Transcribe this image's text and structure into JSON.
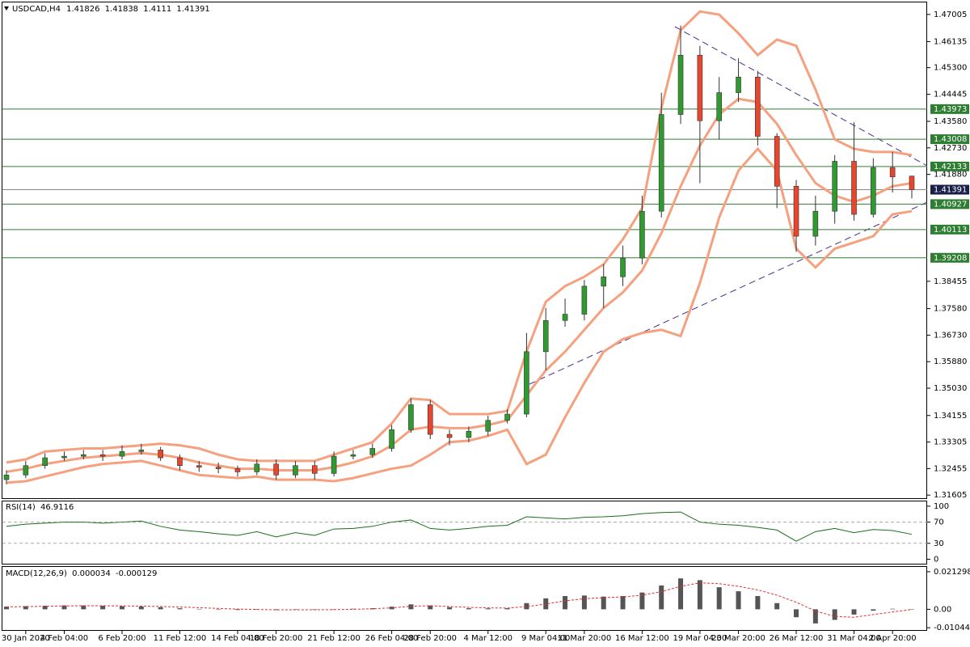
{
  "chart_data": {
    "type": "candlestick",
    "title": "USDCAD,H4",
    "categories": [
      null,
      "30 Jan 2020",
      null,
      "4 Feb 04:00",
      null,
      null,
      "6 Feb 20:00",
      null,
      null,
      "11 Feb 12:00",
      null,
      null,
      "14 Feb 04:00",
      null,
      "18 Feb 20:00",
      null,
      null,
      "21 Feb 12:00",
      null,
      null,
      "26 Feb 04:00",
      null,
      "28 Feb 20:00",
      null,
      null,
      "4 Mar 12:00",
      null,
      null,
      "9 Mar 04:00",
      null,
      "11 Mar 20:00",
      null,
      null,
      "16 Mar 12:00",
      null,
      null,
      "19 Mar 04:00",
      null,
      "23 Mar 20:00",
      null,
      null,
      "26 Mar 12:00",
      null,
      null,
      "31 Mar 04:00",
      null,
      "2 Apr 20:00",
      null
    ],
    "open": [
      1.321,
      1.3225,
      1.3255,
      1.328,
      1.3285,
      1.329,
      1.3285,
      1.33,
      1.3305,
      1.328,
      1.3255,
      1.325,
      1.3245,
      1.3235,
      1.326,
      1.3225,
      1.3255,
      1.323,
      1.3285,
      1.329,
      1.331,
      1.337,
      1.345,
      1.3355,
      1.3345,
      1.3365,
      1.34,
      1.342,
      1.362,
      1.372,
      1.374,
      1.383,
      1.386,
      1.392,
      1.407,
      1.438,
      1.457,
      1.436,
      1.445,
      1.45,
      1.431,
      1.415,
      1.399,
      1.407,
      1.423,
      1.406,
      1.421,
      1.41826
    ],
    "high": [
      1.324,
      1.327,
      1.3295,
      1.33,
      1.3305,
      1.3305,
      1.332,
      1.3325,
      1.3315,
      1.329,
      1.327,
      1.3265,
      1.3255,
      1.3275,
      1.3275,
      1.327,
      1.327,
      1.33,
      1.3305,
      1.3325,
      1.3385,
      1.347,
      1.3465,
      1.337,
      1.338,
      1.3415,
      1.3435,
      1.368,
      1.376,
      1.379,
      1.385,
      1.39,
      1.396,
      1.412,
      1.445,
      1.4665,
      1.46,
      1.45,
      1.456,
      1.452,
      1.432,
      1.417,
      1.412,
      1.425,
      1.4355,
      1.424,
      1.426,
      1.41838
    ],
    "low": [
      1.3195,
      1.3215,
      1.3245,
      1.327,
      1.3275,
      1.327,
      1.3275,
      1.329,
      1.327,
      1.324,
      1.3235,
      1.323,
      1.322,
      1.3225,
      1.321,
      1.3215,
      1.321,
      1.322,
      1.3275,
      1.328,
      1.33,
      1.336,
      1.334,
      1.332,
      1.333,
      1.335,
      1.339,
      1.341,
      1.356,
      1.37,
      1.372,
      1.376,
      1.383,
      1.39,
      1.405,
      1.435,
      1.416,
      1.43,
      1.442,
      1.428,
      1.408,
      1.394,
      1.396,
      1.403,
      1.404,
      1.405,
      1.413,
      1.4111
    ],
    "close": [
      1.3225,
      1.3255,
      1.328,
      1.3285,
      1.329,
      1.3285,
      1.33,
      1.3305,
      1.328,
      1.3255,
      1.325,
      1.3245,
      1.3235,
      1.326,
      1.3225,
      1.3255,
      1.323,
      1.3285,
      1.329,
      1.331,
      1.337,
      1.345,
      1.3355,
      1.3345,
      1.3365,
      1.34,
      1.342,
      1.362,
      1.372,
      1.374,
      1.383,
      1.386,
      1.392,
      1.407,
      1.438,
      1.457,
      1.436,
      1.445,
      1.45,
      1.431,
      1.415,
      1.399,
      1.407,
      1.423,
      1.406,
      1.421,
      1.418,
      1.41391
    ],
    "bands": [
      {
        "color": "#f5a07e",
        "values": [
          1.3265,
          1.3275,
          1.33,
          1.3305,
          1.331,
          1.331,
          1.3315,
          1.332,
          1.3325,
          1.332,
          1.331,
          1.329,
          1.3275,
          1.327,
          1.327,
          1.327,
          1.327,
          1.329,
          1.331,
          1.333,
          1.339,
          1.347,
          1.3465,
          1.342,
          1.342,
          1.342,
          1.343,
          1.362,
          1.378,
          1.383,
          1.386,
          1.39,
          1.398,
          1.408,
          1.44,
          1.465,
          1.471,
          1.47,
          1.464,
          1.457,
          1.462,
          1.46,
          1.446,
          1.43,
          1.427,
          1.426,
          1.426,
          1.425
        ]
      },
      {
        "color": "#f5a07e",
        "values": [
          1.3235,
          1.3245,
          1.326,
          1.327,
          1.328,
          1.3285,
          1.329,
          1.3295,
          1.329,
          1.328,
          1.3265,
          1.3255,
          1.3245,
          1.3245,
          1.324,
          1.324,
          1.324,
          1.325,
          1.3265,
          1.3285,
          1.332,
          1.337,
          1.338,
          1.3375,
          1.3375,
          1.3385,
          1.34,
          1.348,
          1.356,
          1.362,
          1.369,
          1.376,
          1.381,
          1.388,
          1.4,
          1.415,
          1.428,
          1.438,
          1.443,
          1.442,
          1.435,
          1.425,
          1.416,
          1.412,
          1.41,
          1.412,
          1.415,
          1.416
        ]
      },
      {
        "color": "#f5a07e",
        "values": [
          1.32,
          1.3205,
          1.322,
          1.3235,
          1.325,
          1.326,
          1.3265,
          1.327,
          1.3255,
          1.324,
          1.3225,
          1.322,
          1.3215,
          1.322,
          1.321,
          1.321,
          1.321,
          1.3205,
          1.3215,
          1.323,
          1.3245,
          1.3255,
          1.329,
          1.333,
          1.3335,
          1.335,
          1.337,
          1.326,
          1.329,
          1.341,
          1.352,
          1.362,
          1.366,
          1.368,
          1.369,
          1.367,
          1.384,
          1.405,
          1.42,
          1.427,
          1.42,
          1.395,
          1.389,
          1.395,
          1.397,
          1.399,
          1.406,
          1.407
        ]
      }
    ],
    "levels": [
      1.43973,
      1.43008,
      1.42133,
      1.40927,
      1.40113,
      1.39208
    ],
    "level_color": "#2e7d32",
    "ylim": [
      1.3148,
      1.4739
    ],
    "yticks": [
      1.47005,
      1.46135,
      {
        "value": 1.453,
        "label": "1.45300"
      },
      1.44445,
      {
        "value": 1.4358,
        "label": "1.43580"
      },
      {
        "value": 1.4273,
        "label": "1.42730"
      },
      {
        "value": 1.4188,
        "label": "1.41880"
      },
      1.38455,
      {
        "value": 1.3758,
        "label": "1.37580"
      },
      {
        "value": 1.3673,
        "label": "1.36730"
      },
      {
        "value": 1.3588,
        "label": "1.35880"
      },
      {
        "value": 1.3503,
        "label": "1.35030"
      },
      1.34155,
      1.33305,
      1.32455,
      1.31605
    ],
    "bull_color": "#2f9a2f",
    "bear_color": "#e8452c",
    "rsi": {
      "name": "RSI(14)",
      "color": "#1b6e1b",
      "values": [
        62,
        66,
        68,
        70,
        70,
        68,
        70,
        72,
        62,
        55,
        52,
        48,
        45,
        52,
        42,
        50,
        45,
        57,
        58,
        62,
        70,
        74,
        58,
        55,
        58,
        62,
        64,
        80,
        78,
        76,
        79,
        80,
        82,
        86,
        88,
        89,
        70,
        66,
        64,
        60,
        55,
        34,
        52,
        58,
        50,
        56,
        54,
        46.9116
      ],
      "ylim": [
        -10,
        109
      ],
      "yticks": [
        100,
        70,
        30,
        0
      ],
      "levels": [
        70,
        30
      ]
    },
    "macd": {
      "name": "MACD(12,26,9)",
      "hist_color": "#555555",
      "signal_color": "#e03030",
      "hist": [
        0.0015,
        0.0018,
        0.002,
        0.0022,
        0.0022,
        0.002,
        0.0018,
        0.0016,
        0.0012,
        0.0006,
        0.0002,
        -0.0002,
        -0.0004,
        -0.0003,
        -0.0005,
        -0.0003,
        -0.0003,
        0,
        0.0003,
        0.0006,
        0.0015,
        0.0028,
        0.0022,
        0.0012,
        0.0006,
        0.0005,
        0.0006,
        0.0035,
        0.0062,
        0.0075,
        0.0078,
        0.0072,
        0.0075,
        0.0095,
        0.0135,
        0.0175,
        0.0165,
        0.0125,
        0.0102,
        0.0075,
        0.0035,
        -0.0045,
        -0.008,
        -0.006,
        -0.003,
        -0.0008,
        0.0003,
        3.4e-05
      ],
      "signal": [
        0.0014,
        0.0015,
        0.0017,
        0.0019,
        0.002,
        0.002,
        0.0019,
        0.0018,
        0.0016,
        0.0013,
        0.0009,
        0.0005,
        0.0001,
        -0.0001,
        -0.0003,
        -0.0003,
        -0.0003,
        -0.0002,
        0,
        0.0003,
        0.0008,
        0.0017,
        0.002,
        0.0016,
        0.0011,
        0.0008,
        0.0007,
        0.0015,
        0.003,
        0.0048,
        0.006,
        0.0066,
        0.007,
        0.008,
        0.01,
        0.013,
        0.015,
        0.0145,
        0.013,
        0.011,
        0.008,
        0.004,
        -0.001,
        -0.004,
        -0.0045,
        -0.003,
        -0.0015,
        -0.000129
      ],
      "ylim": [
        -0.0122,
        0.024
      ],
      "yticks": [
        0.021298,
        {
          "value": 0,
          "label": "0.00"
        },
        -0.010446
      ]
    }
  }
}
